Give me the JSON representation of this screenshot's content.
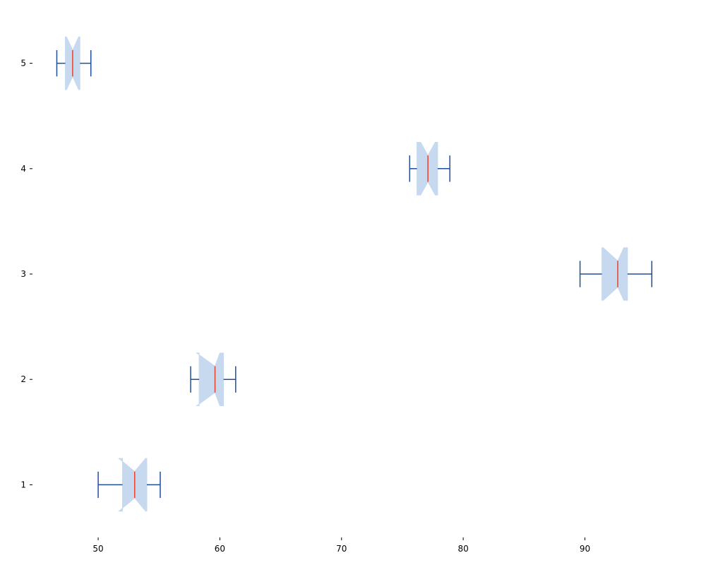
{
  "chart_data": {
    "type": "boxplot",
    "orientation": "horizontal",
    "notched": true,
    "title": "",
    "xlabel": "",
    "ylabel": "",
    "xlim": [
      44.6,
      97.4
    ],
    "ylim": [
      0.5,
      5.5
    ],
    "grid": false,
    "legend": "none",
    "x_ticks": [
      50,
      60,
      70,
      80,
      90
    ],
    "y_ticks": [
      1,
      2,
      3,
      4,
      5
    ],
    "boxes": [
      {
        "position": 1,
        "whisker_low": 50.0,
        "q1": 52.0,
        "median": 53.0,
        "q3": 54.0,
        "whisker_high": 55.1,
        "notch_low": 51.7,
        "notch_high": 53.9
      },
      {
        "position": 2,
        "whisker_low": 57.6,
        "q1": 58.3,
        "median": 59.6,
        "q3": 60.3,
        "whisker_high": 61.3,
        "notch_low": 58.1,
        "notch_high": 60.0
      },
      {
        "position": 3,
        "whisker_low": 89.6,
        "q1": 91.4,
        "median": 92.7,
        "q3": 93.5,
        "whisker_high": 95.5,
        "notch_low": 91.5,
        "notch_high": 93.2
      },
      {
        "position": 4,
        "whisker_low": 75.6,
        "q1": 76.2,
        "median": 77.1,
        "q3": 77.9,
        "whisker_high": 78.9,
        "notch_low": 76.5,
        "notch_high": 77.7
      },
      {
        "position": 5,
        "whisker_low": 46.6,
        "q1": 47.3,
        "median": 47.9,
        "q3": 48.5,
        "whisker_high": 49.4,
        "notch_low": 47.4,
        "notch_high": 48.4
      }
    ],
    "colors": {
      "box_fill": "#c6d9ef",
      "whisker": "#1f4e9a",
      "median": "#e8412c",
      "axis": "#000000"
    }
  }
}
